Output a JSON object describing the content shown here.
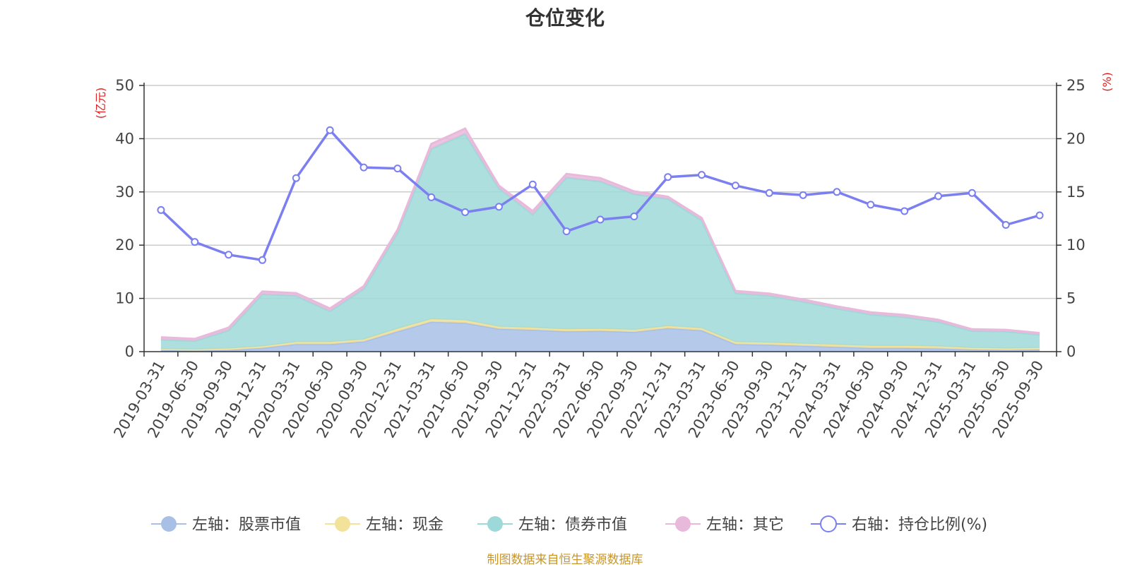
{
  "title": "仓位变化",
  "source": "制图数据来自恒生聚源数据库",
  "chart_data": {
    "type": "area",
    "title": "仓位变化",
    "categories": [
      "2019-03-31",
      "2019-06-30",
      "2019-09-30",
      "2019-12-31",
      "2020-03-31",
      "2020-06-30",
      "2020-09-30",
      "2020-12-31",
      "2021-03-31",
      "2021-06-30",
      "2021-09-30",
      "2021-12-31",
      "2022-03-31",
      "2022-06-30",
      "2022-09-30",
      "2022-12-31",
      "2023-03-31",
      "2023-06-30",
      "2023-09-30",
      "2023-12-31",
      "2024-03-31",
      "2024-06-30",
      "2024-09-30",
      "2024-12-31",
      "2025-03-31",
      "2025-06-30",
      "2025-09-30"
    ],
    "left_axis": {
      "label": "(亿元)",
      "min": 0,
      "max": 50,
      "ticks": [
        "0",
        "10",
        "20",
        "30",
        "40",
        "50"
      ]
    },
    "right_axis": {
      "label": "(%)",
      "min": 0,
      "max": 25,
      "ticks": [
        "0",
        "5",
        "10",
        "15",
        "20",
        "25"
      ]
    },
    "stacked": true,
    "series": [
      {
        "name": "左轴：股票市值",
        "axis": "left",
        "color": "#a8bfe6",
        "values": [
          0.3,
          0.2,
          0.3,
          0.7,
          1.4,
          1.4,
          1.9,
          3.8,
          5.6,
          5.4,
          4.3,
          4.1,
          3.8,
          3.9,
          3.7,
          4.4,
          4.0,
          1.4,
          1.3,
          1.1,
          0.9,
          0.7,
          0.7,
          0.6,
          0.4,
          0.3,
          0.4
        ]
      },
      {
        "name": "左轴：现金",
        "axis": "left",
        "color": "#f3e29a",
        "values": [
          0.2,
          0.2,
          0.3,
          0.3,
          0.4,
          0.4,
          0.4,
          0.5,
          0.5,
          0.5,
          0.4,
          0.4,
          0.4,
          0.4,
          0.4,
          0.4,
          0.4,
          0.4,
          0.4,
          0.4,
          0.4,
          0.4,
          0.4,
          0.4,
          0.3,
          0.3,
          0.3
        ]
      },
      {
        "name": "左轴：债券市值",
        "axis": "left",
        "color": "#9dd9d8",
        "values": [
          1.8,
          1.6,
          3.4,
          9.8,
          8.7,
          5.8,
          9.5,
          18.0,
          32.0,
          35.0,
          26.0,
          21.3,
          28.5,
          27.7,
          25.5,
          23.9,
          20.3,
          9.2,
          8.8,
          7.9,
          6.8,
          5.9,
          5.4,
          4.6,
          3.2,
          3.2,
          2.5
        ]
      },
      {
        "name": "左轴：其它",
        "axis": "left",
        "color": "#e9b9dc",
        "values": [
          0.4,
          0.4,
          0.5,
          0.5,
          0.5,
          0.5,
          0.5,
          0.6,
          0.9,
          1.0,
          0.5,
          0.6,
          0.7,
          0.6,
          0.5,
          0.4,
          0.4,
          0.4,
          0.4,
          0.4,
          0.4,
          0.4,
          0.4,
          0.4,
          0.3,
          0.3,
          0.3
        ]
      },
      {
        "name": "右轴：持仓比例(%)",
        "axis": "right",
        "color": "#7b7ff0",
        "type": "line",
        "values": [
          13.3,
          10.3,
          9.1,
          8.6,
          16.3,
          20.8,
          17.3,
          17.2,
          14.5,
          13.1,
          13.6,
          15.7,
          11.3,
          12.4,
          12.7,
          16.4,
          16.6,
          15.6,
          14.9,
          14.7,
          15.0,
          13.8,
          13.2,
          14.6,
          14.9,
          11.9,
          12.8
        ]
      }
    ],
    "legend_position": "bottom"
  }
}
